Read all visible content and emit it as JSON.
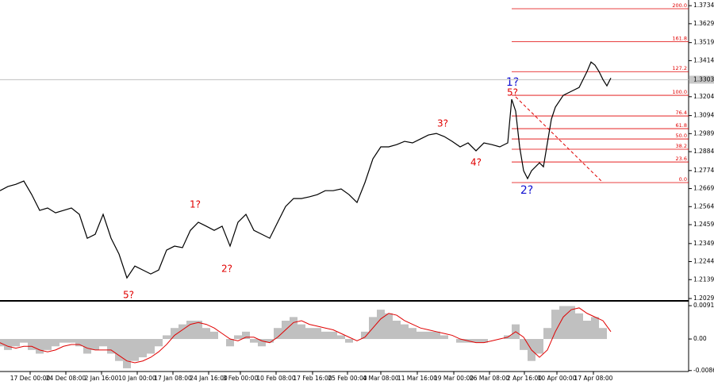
{
  "chart_data": {
    "type": "line",
    "price": {
      "name": "Price",
      "color": "#000000",
      "x": [
        0,
        10,
        20,
        30,
        40,
        50,
        60,
        70,
        80,
        90,
        100,
        110,
        120,
        130,
        140,
        150,
        160,
        170,
        180,
        190,
        200,
        210,
        220,
        230,
        240,
        250,
        260,
        270,
        280,
        290,
        300,
        310,
        320,
        330,
        340,
        350,
        360,
        370,
        380,
        390,
        400,
        410,
        420,
        430,
        440,
        450,
        460,
        470,
        480,
        490,
        500,
        510,
        520,
        530,
        540,
        550,
        560,
        570,
        580,
        590,
        600,
        610,
        620,
        630,
        640,
        645,
        650,
        655,
        660,
        665,
        670,
        680,
        685,
        690,
        695,
        700,
        710,
        720,
        730,
        740,
        745,
        750,
        755,
        760,
        765,
        770
      ],
      "values": [
        1.2657,
        1.2681,
        1.2694,
        1.2713,
        1.2634,
        1.2542,
        1.2556,
        1.2528,
        1.2542,
        1.2556,
        1.2519,
        1.238,
        1.2403,
        1.2519,
        1.238,
        1.2288,
        1.2149,
        1.2218,
        1.2195,
        1.2172,
        1.2195,
        1.2311,
        1.2334,
        1.2325,
        1.2426,
        1.2473,
        1.245,
        1.2426,
        1.245,
        1.2334,
        1.2473,
        1.2519,
        1.2426,
        1.2403,
        1.238,
        1.2473,
        1.2565,
        1.2611,
        1.2611,
        1.2621,
        1.2634,
        1.2657,
        1.2657,
        1.2667,
        1.2634,
        1.2588,
        1.2704,
        1.2842,
        1.2912,
        1.2912,
        1.2925,
        1.2944,
        1.2935,
        1.2958,
        1.2981,
        1.299,
        1.2972,
        1.2944,
        1.2912,
        1.2935,
        1.2889,
        1.2935,
        1.2925,
        1.2912,
        1.2935,
        1.3189,
        1.312,
        1.2912,
        1.2773,
        1.2727,
        1.2773,
        1.2819,
        1.2796,
        1.2935,
        1.3073,
        1.3143,
        1.3212,
        1.3235,
        1.3258,
        1.3351,
        1.3406,
        1.3388,
        1.3351,
        1.3304,
        1.3267,
        1.3313
      ]
    },
    "current_price": 1.3303,
    "ylim": [
      1.202,
      1.3767
    ],
    "yticks": [
      1.3734,
      1.3629,
      1.3519,
      1.3414,
      1.3204,
      1.3094,
      1.2989,
      1.2884,
      1.2774,
      1.2669,
      1.2564,
      1.2459,
      1.2349,
      1.2244,
      1.2139,
      1.2029
    ],
    "xlim": [
      0,
      868
    ],
    "xticks": [
      {
        "value": 38,
        "label": "17 Dec 00:00"
      },
      {
        "value": 83,
        "label": "24 Dec 08:00"
      },
      {
        "value": 128,
        "label": "2 Jan 16:00"
      },
      {
        "value": 173,
        "label": "10 Jan 00:00"
      },
      {
        "value": 218,
        "label": "17 Jan 08:00"
      },
      {
        "value": 263,
        "label": "24 Jan 16:00"
      },
      {
        "value": 303,
        "label": "3 Feb 00:00"
      },
      {
        "value": 348,
        "label": "10 Feb 08:00"
      },
      {
        "value": 394,
        "label": "17 Feb 16:00"
      },
      {
        "value": 438,
        "label": "25 Feb 00:00"
      },
      {
        "value": 480,
        "label": "4 Mar 08:00"
      },
      {
        "value": 526,
        "label": "11 Mar 16:00"
      },
      {
        "value": 572,
        "label": "19 Mar 00:00"
      },
      {
        "value": 617,
        "label": "26 Mar 08:00"
      },
      {
        "value": 661,
        "label": "2 Apr 16:00"
      },
      {
        "value": 702,
        "label": "10 Apr 00:00"
      },
      {
        "value": 748,
        "label": "17 Apr 08:00"
      }
    ],
    "fibonacci": {
      "color": "#e00000",
      "levels": [
        {
          "label": "200.0",
          "price": 1.3716
        },
        {
          "label": "161.8",
          "price": 1.3525
        },
        {
          "label": "127.2",
          "price": 1.335
        },
        {
          "label": "100.0",
          "price": 1.3212
        },
        {
          "label": "76.4",
          "price": 1.3092
        },
        {
          "label": "61.8",
          "price": 1.3018
        },
        {
          "label": "50.0",
          "price": 1.2958
        },
        {
          "label": "38.2",
          "price": 1.2898
        },
        {
          "label": "23.6",
          "price": 1.2824
        },
        {
          "label": "0.0",
          "price": 1.2704
        }
      ]
    },
    "annotations": [
      "1?",
      "5?",
      "3?",
      "4?",
      "2?",
      "1?",
      "2?",
      "5?"
    ],
    "macd": {
      "histogram_color": "#c0c0c0",
      "signal_color": "#e00000",
      "x": [
        0,
        10,
        20,
        30,
        40,
        50,
        60,
        70,
        80,
        90,
        100,
        110,
        120,
        130,
        140,
        150,
        160,
        170,
        180,
        190,
        200,
        210,
        220,
        230,
        240,
        250,
        260,
        270,
        280,
        290,
        300,
        310,
        320,
        330,
        340,
        350,
        360,
        370,
        380,
        390,
        400,
        410,
        420,
        430,
        440,
        450,
        460,
        470,
        480,
        490,
        500,
        510,
        520,
        530,
        540,
        550,
        560,
        570,
        580,
        590,
        600,
        610,
        620,
        630,
        640,
        650,
        660,
        670,
        680,
        690,
        700,
        710,
        720,
        730,
        740,
        750,
        760,
        770
      ],
      "histogram": [
        -0.002,
        -0.003,
        -0.002,
        -0.001,
        -0.003,
        -0.004,
        -0.003,
        -0.002,
        -0.001,
        -0.001,
        -0.002,
        -0.004,
        -0.003,
        -0.002,
        -0.004,
        -0.006,
        -0.008,
        -0.006,
        -0.005,
        -0.004,
        -0.002,
        0.001,
        0.003,
        0.004,
        0.005,
        0.005,
        0.003,
        0.002,
        0,
        -0.002,
        0.001,
        0.002,
        -0.001,
        -0.002,
        -0.001,
        0.003,
        0.005,
        0.006,
        0.004,
        0.003,
        0.003,
        0.002,
        0.002,
        0.001,
        -0.001,
        0,
        0.002,
        0.006,
        0.008,
        0.007,
        0.005,
        0.004,
        0.003,
        0.002,
        0.002,
        0.002,
        0.001,
        0,
        -0.001,
        -0.001,
        -0.001,
        -0.001,
        0,
        0,
        0.001,
        0.004,
        -0.003,
        -0.006,
        -0.004,
        0.003,
        0.008,
        0.009,
        0.009,
        0.007,
        0.005,
        0.006,
        0.003,
        0
      ],
      "signal": [
        -0.001,
        -0.002,
        -0.0025,
        -0.002,
        -0.002,
        -0.003,
        -0.0035,
        -0.003,
        -0.002,
        -0.0015,
        -0.0015,
        -0.0025,
        -0.003,
        -0.003,
        -0.003,
        -0.0045,
        -0.006,
        -0.0065,
        -0.006,
        -0.005,
        -0.0035,
        -0.0015,
        0.001,
        0.0025,
        0.004,
        0.0045,
        0.004,
        0.003,
        0.0015,
        0,
        -0.0005,
        0.0005,
        0.0005,
        -0.0005,
        -0.001,
        0.0005,
        0.0025,
        0.0045,
        0.005,
        0.004,
        0.0035,
        0.003,
        0.0025,
        0.0015,
        0.0005,
        -0.0005,
        0.0005,
        0.003,
        0.0055,
        0.007,
        0.0065,
        0.005,
        0.004,
        0.003,
        0.0025,
        0.002,
        0.0015,
        0.001,
        0,
        -0.0005,
        -0.001,
        -0.001,
        -0.0005,
        0,
        0.0005,
        0.002,
        0.0005,
        -0.003,
        -0.005,
        -0.003,
        0.002,
        0.006,
        0.008,
        0.0085,
        0.007,
        0.006,
        0.005,
        0.002
      ],
      "y2lim": [
        -0.00888,
        0.0102
      ],
      "y2ticks": [
        0.0091,
        {
          "value": 0,
          "label": "0.00"
        },
        -0.00862
      ]
    }
  }
}
